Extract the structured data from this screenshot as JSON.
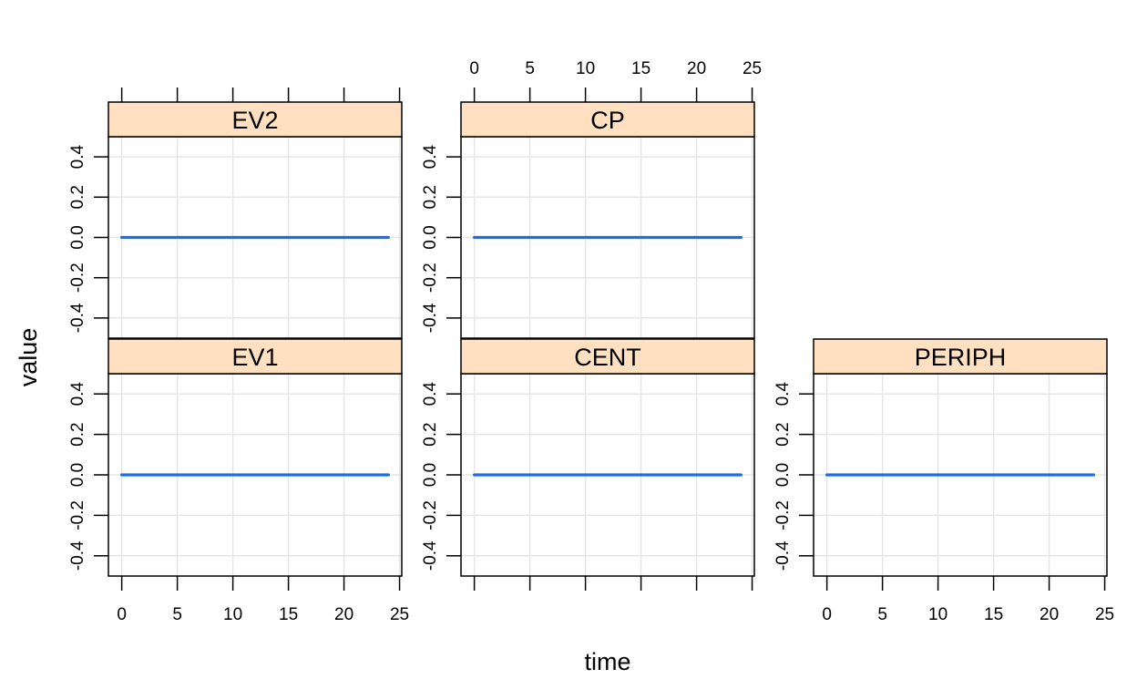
{
  "chart_data": {
    "type": "line",
    "layout": "lattice-panels",
    "xlabel": "time",
    "ylabel": "value",
    "xlim": [
      -1.2,
      25.2
    ],
    "ylim": [
      -0.5,
      0.5
    ],
    "x_ticks": [
      0,
      5,
      10,
      15,
      20,
      25
    ],
    "y_ticks": [
      -0.4,
      -0.2,
      0.0,
      0.2,
      0.4
    ],
    "x_tick_labels": [
      "0",
      "5",
      "10",
      "15",
      "20",
      "25"
    ],
    "y_tick_labels": [
      "-0.4",
      "-0.2",
      "0.0",
      "0.2",
      "0.4"
    ],
    "grid": true,
    "colors": {
      "line": "#1a6ee6",
      "strip": "#ffe0c1",
      "grid": "#e6e6e6"
    },
    "panels": [
      {
        "name": "EV2",
        "row": 0,
        "col": 0,
        "x": [
          0,
          24
        ],
        "y": [
          0,
          0
        ]
      },
      {
        "name": "CP",
        "row": 0,
        "col": 1,
        "x": [
          0,
          24
        ],
        "y": [
          0,
          0
        ]
      },
      {
        "name": "EV1",
        "row": 1,
        "col": 0,
        "x": [
          0,
          24
        ],
        "y": [
          0,
          0
        ]
      },
      {
        "name": "CENT",
        "row": 1,
        "col": 1,
        "x": [
          0,
          24
        ],
        "y": [
          0,
          0
        ]
      },
      {
        "name": "PERIPH",
        "row": 1,
        "col": 2,
        "x": [
          0,
          24
        ],
        "y": [
          0,
          0
        ]
      }
    ]
  }
}
